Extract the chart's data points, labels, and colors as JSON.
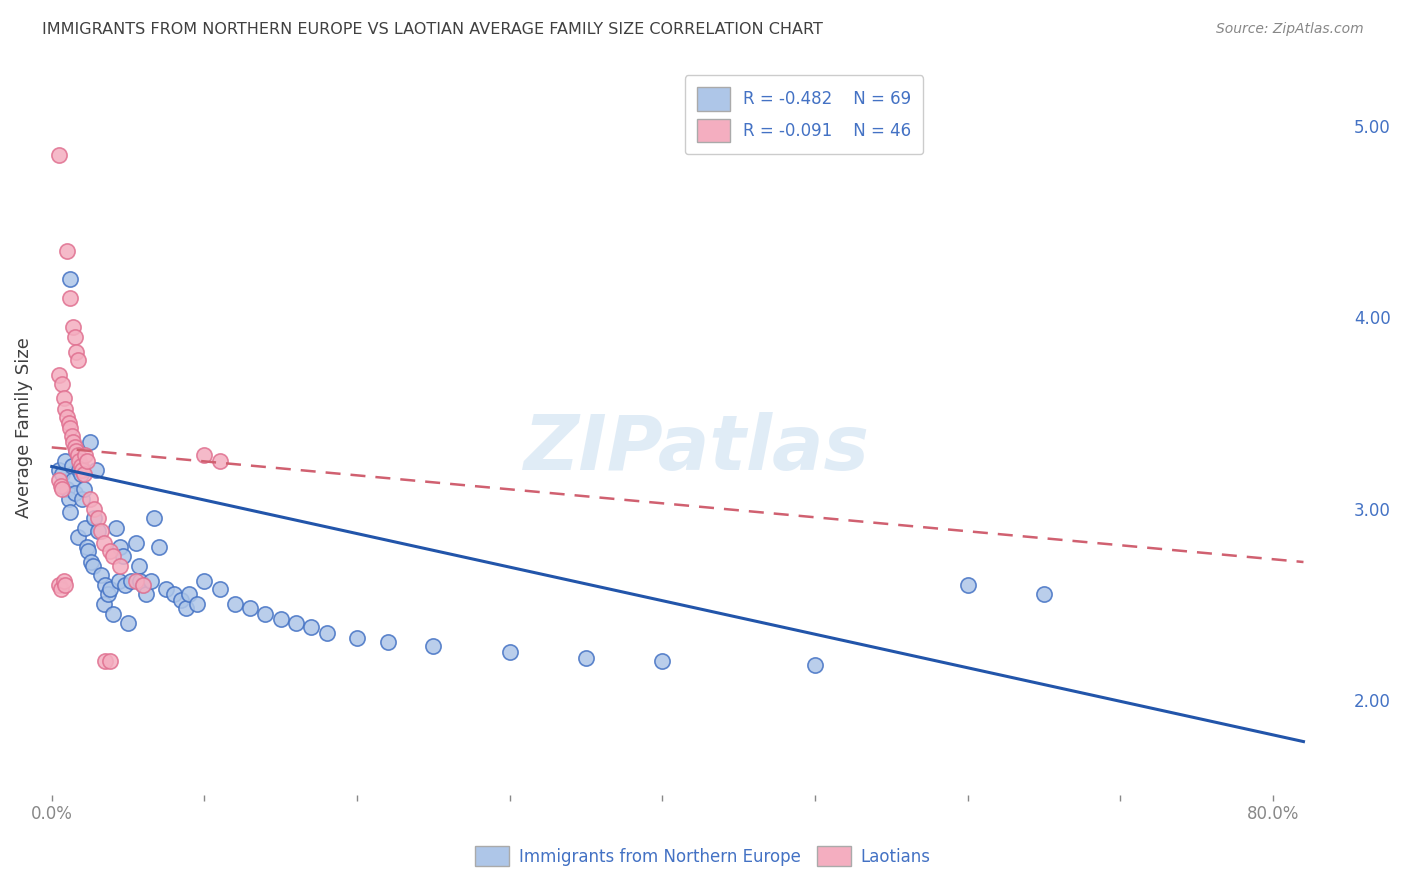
{
  "title": "IMMIGRANTS FROM NORTHERN EUROPE VS LAOTIAN AVERAGE FAMILY SIZE CORRELATION CHART",
  "source": "Source: ZipAtlas.com",
  "ylabel": "Average Family Size",
  "watermark": "ZIPatlas",
  "legend_blue_r": "R = -0.482",
  "legend_blue_n": "N = 69",
  "legend_pink_r": "R = -0.091",
  "legend_pink_n": "N = 46",
  "ylim": [
    1.5,
    5.35
  ],
  "xlim": [
    -0.005,
    0.85
  ],
  "yticks_right": [
    2.0,
    3.0,
    4.0,
    5.0
  ],
  "blue_color": "#aec6e8",
  "pink_color": "#f4aec0",
  "blue_edge_color": "#4472c4",
  "pink_edge_color": "#e07090",
  "blue_line_color": "#2255aa",
  "pink_line_color": "#d06070",
  "blue_scatter": [
    [
      0.005,
      3.2
    ],
    [
      0.007,
      3.18
    ],
    [
      0.009,
      3.25
    ],
    [
      0.01,
      3.1
    ],
    [
      0.011,
      3.05
    ],
    [
      0.012,
      2.98
    ],
    [
      0.013,
      3.22
    ],
    [
      0.014,
      3.15
    ],
    [
      0.015,
      3.08
    ],
    [
      0.016,
      3.3
    ],
    [
      0.017,
      2.85
    ],
    [
      0.018,
      3.2
    ],
    [
      0.019,
      3.18
    ],
    [
      0.02,
      3.05
    ],
    [
      0.021,
      3.1
    ],
    [
      0.022,
      2.9
    ],
    [
      0.023,
      2.8
    ],
    [
      0.024,
      2.78
    ],
    [
      0.025,
      3.35
    ],
    [
      0.026,
      2.72
    ],
    [
      0.027,
      2.7
    ],
    [
      0.028,
      2.95
    ],
    [
      0.029,
      3.2
    ],
    [
      0.03,
      2.88
    ],
    [
      0.032,
      2.65
    ],
    [
      0.034,
      2.5
    ],
    [
      0.035,
      2.6
    ],
    [
      0.037,
      2.55
    ],
    [
      0.038,
      2.58
    ],
    [
      0.04,
      2.45
    ],
    [
      0.042,
      2.9
    ],
    [
      0.044,
      2.62
    ],
    [
      0.045,
      2.8
    ],
    [
      0.047,
      2.75
    ],
    [
      0.048,
      2.6
    ],
    [
      0.05,
      2.4
    ],
    [
      0.052,
      2.62
    ],
    [
      0.055,
      2.82
    ],
    [
      0.057,
      2.7
    ],
    [
      0.058,
      2.62
    ],
    [
      0.06,
      2.6
    ],
    [
      0.062,
      2.55
    ],
    [
      0.065,
      2.62
    ],
    [
      0.067,
      2.95
    ],
    [
      0.07,
      2.8
    ],
    [
      0.075,
      2.58
    ],
    [
      0.08,
      2.55
    ],
    [
      0.085,
      2.52
    ],
    [
      0.088,
      2.48
    ],
    [
      0.09,
      2.55
    ],
    [
      0.095,
      2.5
    ],
    [
      0.1,
      2.62
    ],
    [
      0.11,
      2.58
    ],
    [
      0.12,
      2.5
    ],
    [
      0.13,
      2.48
    ],
    [
      0.14,
      2.45
    ],
    [
      0.15,
      2.42
    ],
    [
      0.16,
      2.4
    ],
    [
      0.17,
      2.38
    ],
    [
      0.18,
      2.35
    ],
    [
      0.2,
      2.32
    ],
    [
      0.22,
      2.3
    ],
    [
      0.25,
      2.28
    ],
    [
      0.3,
      2.25
    ],
    [
      0.35,
      2.22
    ],
    [
      0.4,
      2.2
    ],
    [
      0.5,
      2.18
    ],
    [
      0.6,
      2.6
    ],
    [
      0.65,
      2.55
    ],
    [
      0.012,
      4.2
    ]
  ],
  "pink_scatter": [
    [
      0.005,
      4.85
    ],
    [
      0.01,
      4.35
    ],
    [
      0.012,
      4.1
    ],
    [
      0.014,
      3.95
    ],
    [
      0.015,
      3.9
    ],
    [
      0.016,
      3.82
    ],
    [
      0.017,
      3.78
    ],
    [
      0.005,
      3.7
    ],
    [
      0.007,
      3.65
    ],
    [
      0.008,
      3.58
    ],
    [
      0.009,
      3.52
    ],
    [
      0.01,
      3.48
    ],
    [
      0.011,
      3.45
    ],
    [
      0.012,
      3.42
    ],
    [
      0.013,
      3.38
    ],
    [
      0.014,
      3.35
    ],
    [
      0.015,
      3.32
    ],
    [
      0.016,
      3.3
    ],
    [
      0.017,
      3.28
    ],
    [
      0.018,
      3.25
    ],
    [
      0.019,
      3.22
    ],
    [
      0.02,
      3.2
    ],
    [
      0.021,
      3.18
    ],
    [
      0.005,
      3.15
    ],
    [
      0.006,
      3.12
    ],
    [
      0.007,
      3.1
    ],
    [
      0.022,
      3.28
    ],
    [
      0.023,
      3.25
    ],
    [
      0.025,
      3.05
    ],
    [
      0.028,
      3.0
    ],
    [
      0.03,
      2.95
    ],
    [
      0.032,
      2.88
    ],
    [
      0.034,
      2.82
    ],
    [
      0.038,
      2.78
    ],
    [
      0.04,
      2.75
    ],
    [
      0.045,
      2.7
    ],
    [
      0.005,
      2.6
    ],
    [
      0.006,
      2.58
    ],
    [
      0.035,
      2.2
    ],
    [
      0.038,
      2.2
    ],
    [
      0.1,
      3.28
    ],
    [
      0.11,
      3.25
    ],
    [
      0.055,
      2.62
    ],
    [
      0.06,
      2.6
    ],
    [
      0.008,
      2.62
    ],
    [
      0.009,
      2.6
    ]
  ],
  "blue_line_x": [
    0.0,
    0.82
  ],
  "blue_line_y": [
    3.22,
    1.78
  ],
  "pink_line_x": [
    0.0,
    0.82
  ],
  "pink_line_y": [
    3.32,
    2.72
  ],
  "background_color": "#ffffff",
  "grid_color": "#cccccc",
  "text_color_blue": "#4472c4",
  "title_color": "#404040",
  "source_color": "#888888"
}
